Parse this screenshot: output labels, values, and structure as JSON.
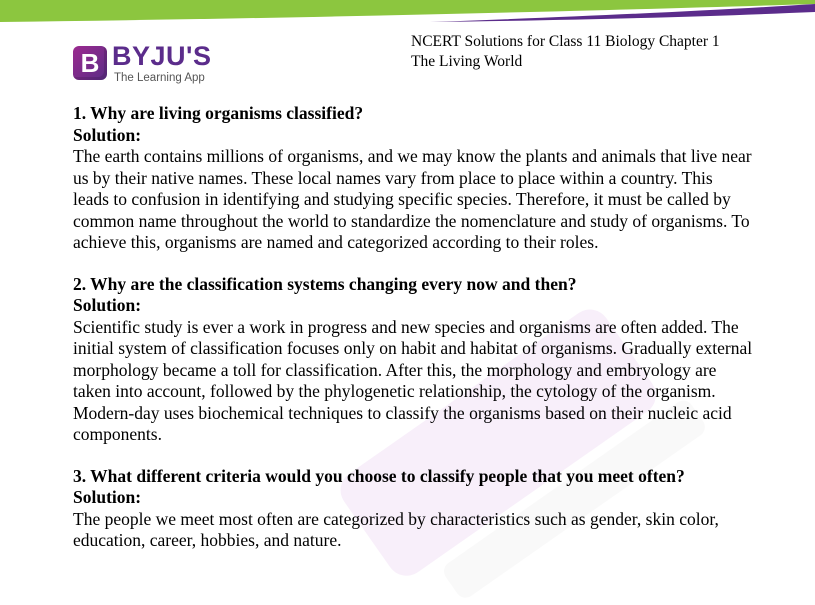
{
  "header": {
    "logo_brand": "BYJU'S",
    "logo_letter": "B",
    "logo_tagline": "The Learning App",
    "doc_title_line1": "NCERT Solutions for Class 11 Biology Chapter 1",
    "doc_title_line2": "The Living World"
  },
  "colors": {
    "brand_purple": "#5b2c8b",
    "banner_green": "#8cc63f",
    "banner_purple": "#5b2c8b"
  },
  "questions": [
    {
      "question": "1. Why are living organisms classified?",
      "solution_label": "Solution:",
      "answer": "The earth contains millions of organisms, and we may know the plants and animals that live near us by their native names. These local names vary from place to place within a country. This leads to confusion in identifying and studying specific species. Therefore, it must be called by common name throughout the world to standardize the nomenclature and study of organisms. To achieve this, organisms are named and categorized according to their roles."
    },
    {
      "question": "2. Why are the classification systems changing every now and then?",
      "solution_label": "Solution:",
      "answer": "Scientific study is ever a work in progress and new species and organisms are often added. The initial system of classification focuses only on habit and habitat of organisms. Gradually external morphology became a toll for classification. After this, the morphology and embryology are taken into account, followed by the phylogenetic relationship, the cytology of the organism. Modern-day uses biochemical techniques to classify the organisms based on their nucleic acid components."
    },
    {
      "question": "3. What different criteria would you choose to classify people that you meet often?",
      "solution_label": "Solution:",
      "answer": "The people we meet most often are categorized by characteristics such as gender, skin color, education, career, hobbies, and nature."
    }
  ]
}
